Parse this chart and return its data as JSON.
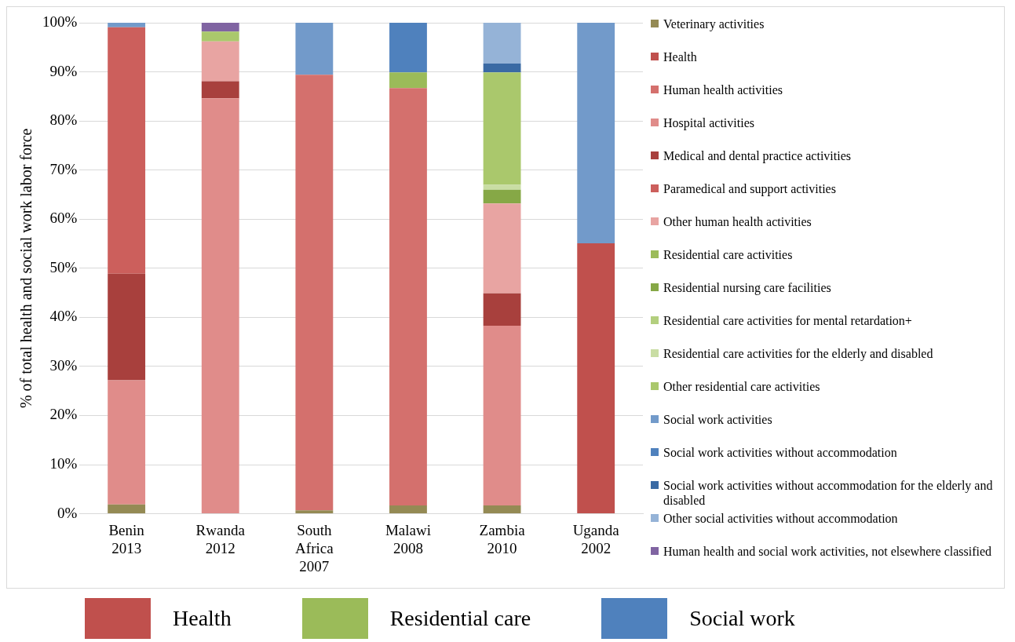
{
  "chart_data": {
    "type": "bar",
    "stacked": true,
    "ylabel": "% of total health and social work labor force",
    "categories": [
      "Benin 2013",
      "Rwanda 2012",
      "South Africa 2007",
      "Malawi 2008",
      "Zambia 2010",
      "Uganda 2002"
    ],
    "ylim": [
      0,
      100
    ],
    "yticks": [
      {
        "value": 0,
        "label": "0%"
      },
      {
        "value": 10,
        "label": "10%"
      },
      {
        "value": 20,
        "label": "20%"
      },
      {
        "value": 30,
        "label": "30%"
      },
      {
        "value": 40,
        "label": "40%"
      },
      {
        "value": 50,
        "label": "50%"
      },
      {
        "value": 60,
        "label": "60%"
      },
      {
        "value": 70,
        "label": "70%"
      },
      {
        "value": 80,
        "label": "80%"
      },
      {
        "value": 90,
        "label": "90%"
      },
      {
        "value": 100,
        "label": "100%"
      }
    ],
    "grid": "y",
    "legend": "right",
    "series": [
      {
        "name": "Veterinary activities",
        "color": "#948a54",
        "values": [
          1.9,
          null,
          0.7,
          1.7,
          1.7,
          null
        ]
      },
      {
        "name": "Health",
        "color": "#c0504d",
        "values": [
          null,
          null,
          null,
          null,
          null,
          55.1
        ]
      },
      {
        "name": "Human health activities",
        "color": "#d4706d",
        "values": [
          null,
          null,
          88.7,
          85.0,
          null,
          null
        ]
      },
      {
        "name": "Hospital activities",
        "color": "#e08c8a",
        "values": [
          25.3,
          84.6,
          null,
          null,
          36.6,
          null
        ]
      },
      {
        "name": "Medical and dental practice activities",
        "color": "#a8403d",
        "values": [
          21.7,
          3.5,
          null,
          null,
          6.6,
          null
        ]
      },
      {
        "name": "Paramedical and support activities",
        "color": "#cc5f5c",
        "values": [
          50.2,
          null,
          null,
          null,
          null,
          null
        ]
      },
      {
        "name": "Other human health activities",
        "color": "#e8a4a2",
        "values": [
          null,
          8.1,
          null,
          null,
          18.3,
          null
        ]
      },
      {
        "name": "Residential care activities",
        "color": "#9bbb59",
        "values": [
          null,
          null,
          null,
          3.2,
          null,
          null
        ]
      },
      {
        "name": "Residential nursing care facilities",
        "color": "#86a846",
        "values": [
          null,
          null,
          null,
          null,
          2.8,
          null
        ]
      },
      {
        "name": "Residential care activities for mental retardation+",
        "color": "#b3cf7e",
        "values": [
          null,
          null,
          null,
          null,
          null,
          null
        ]
      },
      {
        "name": "Residential care activities for the elderly and disabled",
        "color": "#c9dda4",
        "values": [
          null,
          null,
          null,
          null,
          1.0,
          null
        ]
      },
      {
        "name": "Other residential care activities",
        "color": "#aac86c",
        "values": [
          null,
          2.0,
          null,
          null,
          22.9,
          null
        ]
      },
      {
        "name": "Social work activities",
        "color": "#729aca",
        "values": [
          0.9,
          null,
          10.6,
          null,
          null,
          44.9
        ]
      },
      {
        "name": "Social work activities without accommodation",
        "color": "#4f81bd",
        "values": [
          null,
          null,
          null,
          10.1,
          null,
          null
        ]
      },
      {
        "name": "Social work activities without accommodation for the elderly and disabled",
        "color": "#3a6aa4",
        "values": [
          null,
          null,
          null,
          null,
          1.8,
          null
        ]
      },
      {
        "name": "Other social activities without accommodation",
        "color": "#95b3d7",
        "values": [
          null,
          null,
          null,
          null,
          8.3,
          null
        ]
      },
      {
        "name": "Human health and social work activities, not elsewhere classified",
        "color": "#8064a2",
        "values": [
          null,
          1.8,
          null,
          null,
          null,
          null
        ]
      }
    ],
    "annotations": [
      "Health",
      "Residential care",
      "Social work"
    ]
  }
}
